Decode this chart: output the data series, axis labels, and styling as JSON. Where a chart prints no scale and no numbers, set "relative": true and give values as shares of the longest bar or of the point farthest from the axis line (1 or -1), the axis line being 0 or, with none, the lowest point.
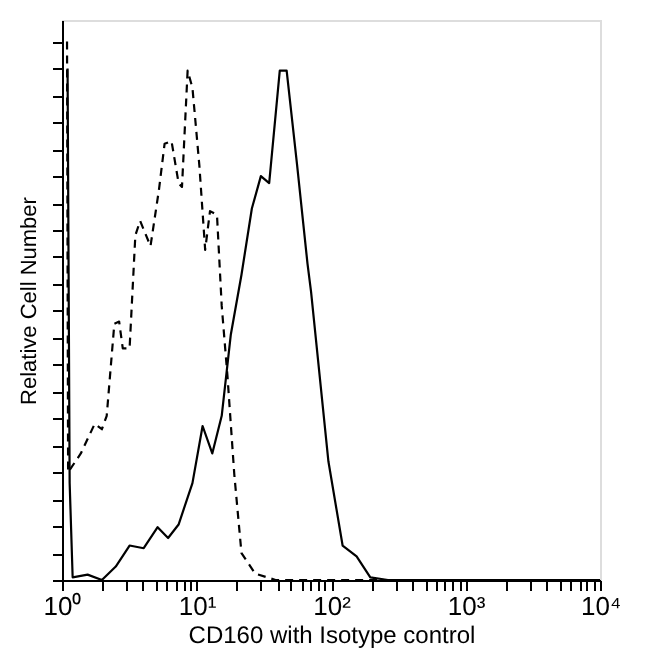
{
  "chart_data": {
    "type": "line",
    "relative": true,
    "log": "x",
    "xlabel": "CD160 with Isotype control",
    "ylabel": "Relative Cell Number",
    "xlim": [
      1,
      10000
    ],
    "xticks": [
      {
        "value": 1,
        "label": "10⁰"
      },
      {
        "value": 2,
        "label": null
      },
      {
        "value": 3,
        "label": null
      },
      {
        "value": 4,
        "label": null
      },
      {
        "value": 5,
        "label": null
      },
      {
        "value": 6,
        "label": null
      },
      {
        "value": 7,
        "label": null
      },
      {
        "value": 8,
        "label": null
      },
      {
        "value": 9,
        "label": null
      },
      {
        "value": 10,
        "label": "10¹"
      },
      {
        "value": 20,
        "label": null
      },
      {
        "value": 30,
        "label": null
      },
      {
        "value": 40,
        "label": null
      },
      {
        "value": 50,
        "label": null
      },
      {
        "value": 60,
        "label": null
      },
      {
        "value": 70,
        "label": null
      },
      {
        "value": 80,
        "label": null
      },
      {
        "value": 90,
        "label": null
      },
      {
        "value": 100,
        "label": "10²"
      },
      {
        "value": 200,
        "label": null
      },
      {
        "value": 300,
        "label": null
      },
      {
        "value": 400,
        "label": null
      },
      {
        "value": 500,
        "label": null
      },
      {
        "value": 600,
        "label": null
      },
      {
        "value": 700,
        "label": null
      },
      {
        "value": 800,
        "label": null
      },
      {
        "value": 900,
        "label": null
      },
      {
        "value": 1000,
        "label": "10³"
      },
      {
        "value": 2000,
        "label": null
      },
      {
        "value": 3000,
        "label": null
      },
      {
        "value": 4000,
        "label": null
      },
      {
        "value": 5000,
        "label": null
      },
      {
        "value": 6000,
        "label": null
      },
      {
        "value": 7000,
        "label": null
      },
      {
        "value": 8000,
        "label": null
      },
      {
        "value": 9000,
        "label": null
      },
      {
        "value": 10000,
        "label": "10⁴"
      }
    ],
    "grid": false,
    "marker": "none",
    "series": [
      {
        "color": "#000000",
        "line_style": "dashed",
        "x": [
          1.09,
          1.11,
          1.38,
          1.75,
          1.98,
          2.15,
          2.45,
          2.66,
          2.83,
          3.18,
          3.51,
          3.81,
          4.55,
          5.26,
          5.79,
          6.52,
          7.36,
          7.8,
          8.59,
          9.33,
          10.5,
          11.6,
          12.6,
          14.2,
          15.4,
          17.0,
          19.1,
          21.6,
          27.3,
          38.7,
          102,
          10000
        ],
        "values": [
          1.0,
          0.2,
          0.235,
          0.29,
          0.28,
          0.305,
          0.476,
          0.48,
          0.43,
          0.43,
          0.64,
          0.667,
          0.62,
          0.725,
          0.81,
          0.815,
          0.737,
          0.73,
          0.946,
          0.914,
          0.77,
          0.613,
          0.685,
          0.678,
          0.509,
          0.378,
          0.196,
          0.05,
          0.012,
          0,
          0,
          0
        ]
      },
      {
        "color": "#000000",
        "line_style": "solid",
        "x": [
          1.1,
          1.14,
          1.2,
          1.55,
          1.98,
          2.51,
          3.18,
          4.05,
          5.14,
          6.15,
          7.36,
          9.33,
          11.1,
          13.1,
          15.4,
          18.0,
          21.6,
          25.8,
          30.1,
          34.7,
          41.6,
          46.8,
          56.0,
          66.9,
          71.1,
          95.7,
          122,
          155,
          196,
          265,
          10000
        ],
        "values": [
          0.95,
          0.18,
          0.005,
          0.01,
          0,
          0.025,
          0.064,
          0.059,
          0.098,
          0.078,
          0.103,
          0.18,
          0.286,
          0.235,
          0.305,
          0.456,
          0.567,
          0.69,
          0.75,
          0.737,
          0.946,
          0.946,
          0.77,
          0.587,
          0.535,
          0.22,
          0.064,
          0.044,
          0.005,
          0,
          0
        ]
      }
    ]
  }
}
